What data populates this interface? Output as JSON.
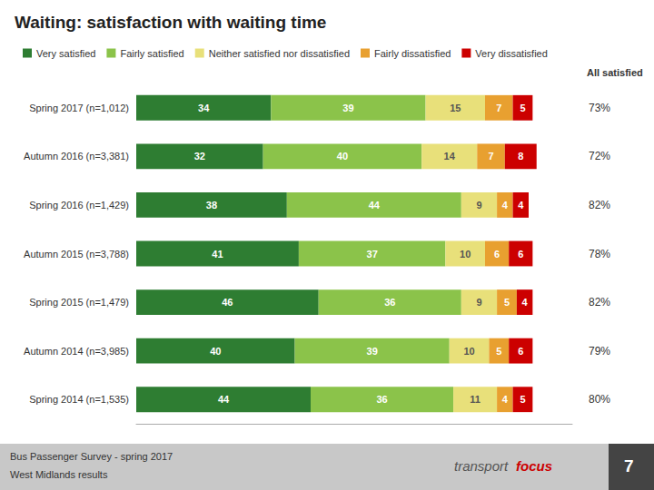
{
  "chart_data": {
    "type": "bar",
    "title": "Waiting: satisfaction with waiting time",
    "subtitle": [
      "Bus Passenger Survey - spring 2017",
      "West Midlands results"
    ],
    "annotations": [
      "transport",
      "focus",
      "7"
    ],
    "orientation": "horizontal",
    "stacked": true,
    "data_labels": true,
    "legend": "top",
    "grid": false,
    "tick_labels": "y",
    "xlim": [
      0,
      110
    ],
    "categories": [
      "Spring 2017 (n=1,012)",
      "Autumn 2016 (n=3,381)",
      "Spring 2016 (n=1,429)",
      "Autumn 2015 (n=3,788)",
      "Spring 2015 (n=1,479)",
      "Autumn 2014 (n=3,985)",
      "Spring 2014 (n=1,535)"
    ],
    "series": [
      {
        "name": "Very satisfied",
        "color": "#2e7d32",
        "values": [
          34,
          32,
          38,
          41,
          46,
          40,
          44
        ]
      },
      {
        "name": "Fairly satisfied",
        "color": "#8bc34a",
        "values": [
          39,
          40,
          44,
          37,
          36,
          39,
          36
        ]
      },
      {
        "name": "Neither satisfied nor dissatisfied",
        "color": "#e8e07a",
        "values": [
          15,
          14,
          9,
          10,
          9,
          10,
          11
        ]
      },
      {
        "name": "Fairly dissatisfied",
        "color": "#e8a030",
        "values": [
          7,
          7,
          4,
          6,
          5,
          5,
          4
        ]
      },
      {
        "name": "Very dissatisfied",
        "color": "#cc0000",
        "values": [
          5,
          8,
          4,
          6,
          4,
          6,
          5
        ]
      }
    ],
    "all_satisfied": {
      "name": "All satisfied",
      "values": [
        73,
        72,
        82,
        78,
        82,
        79,
        80
      ],
      "value_labels": [
        "73%",
        "72%",
        "82%",
        "78%",
        "82%",
        "79%",
        "80%"
      ]
    }
  }
}
